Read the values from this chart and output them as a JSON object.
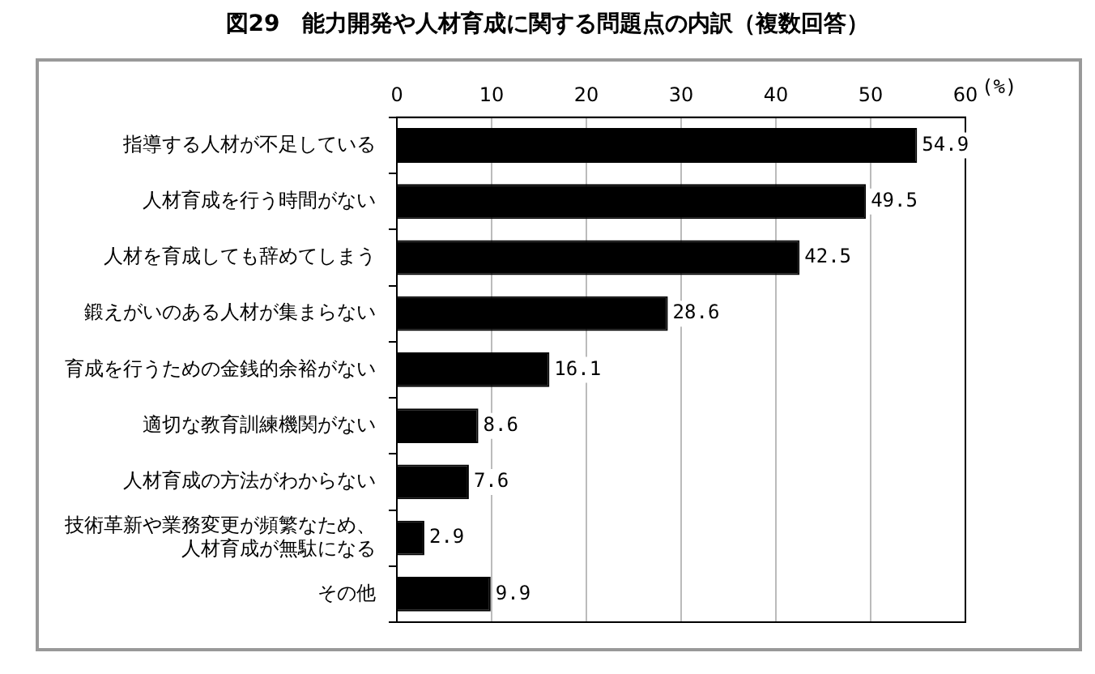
{
  "chart_data": {
    "type": "bar",
    "orientation": "horizontal",
    "title": "図29　能力開発や人材育成に関する問題点の内訳（複数回答）",
    "xlabel": "(%)",
    "categories": [
      "指導する人材が不足している",
      "人材育成を行う時間がない",
      "人材を育成しても辞めてしまう",
      "鍛えがいのある人材が集まらない",
      "育成を行うための金銭的余裕がない",
      "適切な教育訓練機関がない",
      "人材育成の方法がわからない",
      "技術革新や業務変更が頻繁なため、人材育成が無駄になる",
      "その他"
    ],
    "values": [
      54.9,
      49.5,
      42.5,
      28.6,
      16.1,
      8.6,
      7.6,
      2.9,
      9.9
    ],
    "color": "#000000",
    "xlim": [
      0,
      60
    ],
    "xticks": [
      0,
      10,
      20,
      30,
      40,
      50,
      60
    ],
    "grid": "x",
    "data_labels": true,
    "legend": false
  }
}
